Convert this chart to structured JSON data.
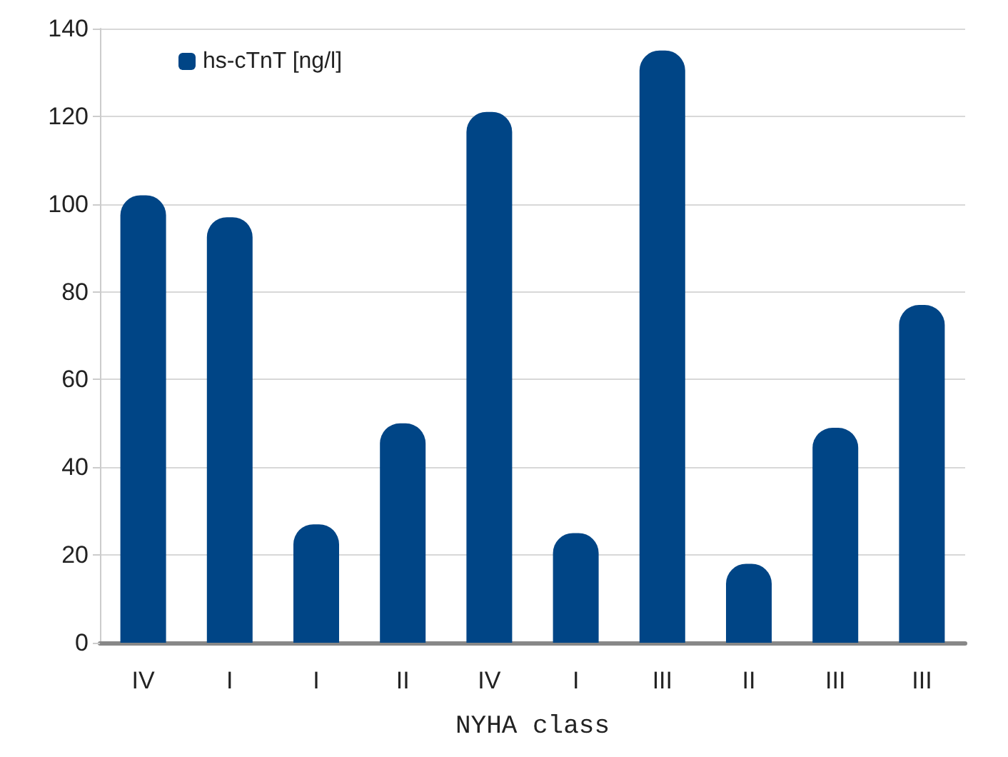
{
  "chart_data": {
    "type": "bar",
    "xlabel": "NYHA class",
    "categories": [
      "IV",
      "I",
      "I",
      "II",
      "IV",
      "I",
      "III",
      "II",
      "III",
      "III"
    ],
    "series": [
      {
        "name": "hs-cTnT [ng/l]",
        "color": "#004586",
        "values": [
          102,
          97,
          27,
          50,
          121,
          25,
          135,
          18,
          49,
          77
        ]
      }
    ],
    "ylim": [
      0,
      140
    ],
    "yticks": [
      0,
      20,
      40,
      60,
      80,
      100,
      120,
      140
    ],
    "grid": "y",
    "legend": "top left"
  }
}
